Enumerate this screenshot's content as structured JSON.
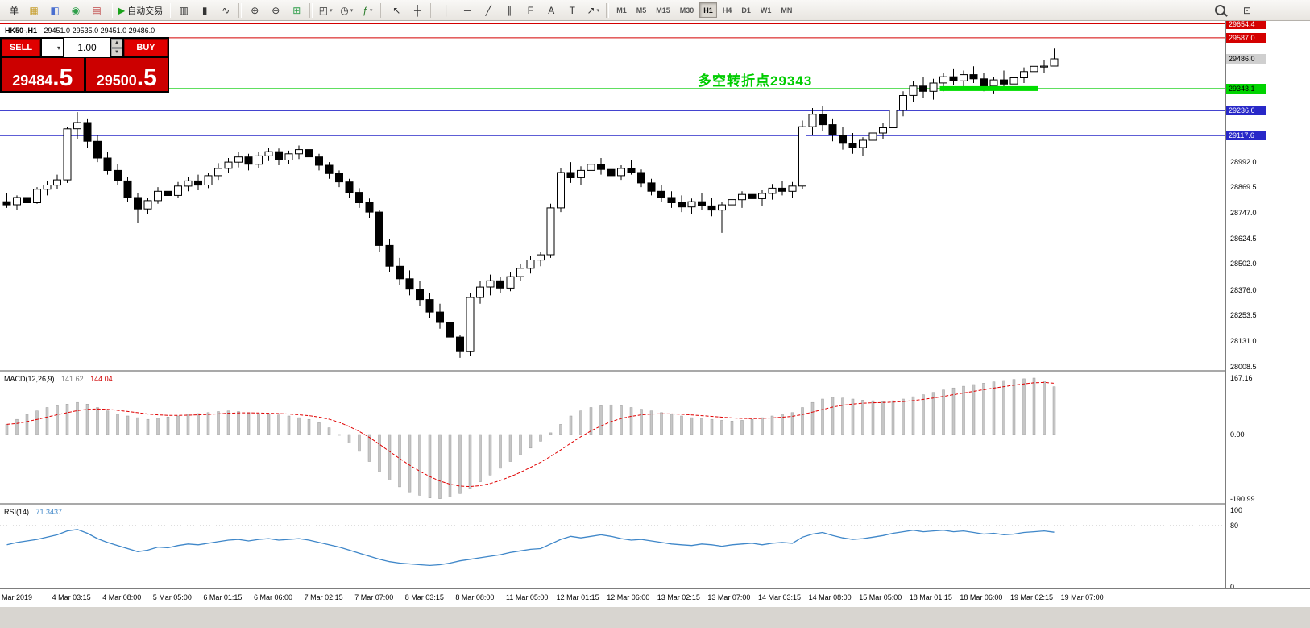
{
  "chart_header": {
    "symbol": "HK50-,H1",
    "ohlc": "29451.0 29535.0 29451.0 29486.0"
  },
  "icons": {
    "chevron_down": "▾",
    "spin_up": "▲",
    "spin_down": "▼"
  },
  "toolbar": {
    "items": [
      {
        "name": "new-order-button",
        "label": "单"
      },
      {
        "name": "market-watch-icon",
        "glyph": "▦",
        "color": "#c79f2f"
      },
      {
        "name": "data-window-icon",
        "glyph": "◧",
        "color": "#4a6fd0"
      },
      {
        "name": "navigator-icon",
        "glyph": "◉",
        "color": "#2e9e4a"
      },
      {
        "name": "terminal-icon",
        "glyph": "▤",
        "color": "#c04545"
      },
      {
        "type": "sep"
      },
      {
        "name": "auto-trading-button",
        "glyph": "▶",
        "color": "#1aa21a",
        "label": "自动交易"
      },
      {
        "type": "sep"
      },
      {
        "name": "bar-chart-icon",
        "glyph": "▥"
      },
      {
        "name": "candlestick-chart-icon",
        "glyph": "▮"
      },
      {
        "name": "line-chart-icon",
        "glyph": "∿"
      },
      {
        "type": "sep"
      },
      {
        "name": "zoom-in-icon",
        "glyph": "⊕"
      },
      {
        "name": "zoom-out-icon",
        "glyph": "⊖"
      },
      {
        "name": "tile-windows-icon",
        "glyph": "⊞",
        "color": "#2e9e4a"
      },
      {
        "type": "sep"
      },
      {
        "name": "new-chart-icon",
        "glyph": "◰",
        "dropdown": true
      },
      {
        "name": "period-icon",
        "glyph": "◷",
        "dropdown": true
      },
      {
        "name": "indicators-icon",
        "glyph": "ƒ",
        "color": "#2e7e2e",
        "dropdown": true
      },
      {
        "type": "sep"
      },
      {
        "name": "cursor-icon",
        "glyph": "↖"
      },
      {
        "name": "crosshair-icon",
        "glyph": "┼"
      },
      {
        "type": "sep"
      },
      {
        "name": "vertical-line-icon",
        "glyph": "│"
      },
      {
        "name": "horizontal-line-icon",
        "glyph": "─"
      },
      {
        "name": "trendline-icon",
        "glyph": "╱"
      },
      {
        "name": "channel-icon",
        "glyph": "∥"
      },
      {
        "name": "fibonacci-icon",
        "glyph": "F"
      },
      {
        "name": "text-icon",
        "glyph": "A"
      },
      {
        "name": "label-icon",
        "glyph": "T"
      },
      {
        "name": "shapes-icon",
        "glyph": "↗",
        "dropdown": true
      },
      {
        "type": "sep"
      }
    ],
    "timeframes": [
      "M1",
      "M5",
      "M15",
      "M30",
      "H1",
      "H4",
      "D1",
      "W1",
      "MN"
    ],
    "active_timeframe": "H1",
    "right_icons": [
      {
        "name": "search-icon",
        "glyph": "search"
      },
      {
        "name": "new-window-icon",
        "glyph": "⊡"
      }
    ]
  },
  "trade_panel": {
    "sell_label": "SELL",
    "buy_label": "BUY",
    "volume": "1.00",
    "sell_price_main": "29484",
    "sell_price_frac": ".5",
    "buy_price_main": "29500",
    "buy_price_frac": ".5"
  },
  "annotation": {
    "text": "多空转折点29343",
    "color": "#00cc00"
  },
  "time_axis": {
    "labels": [
      "Mar 2019",
      "4 Mar 03:15",
      "4 Mar 08:00",
      "5 Mar 05:00",
      "6 Mar 01:15",
      "6 Mar 06:00",
      "7 Mar 02:15",
      "7 Mar 07:00",
      "8 Mar 03:15",
      "8 Mar 08:00",
      "11 Mar 05:00",
      "12 Mar 01:15",
      "12 Mar 06:00",
      "13 Mar 02:15",
      "13 Mar 07:00",
      "14 Mar 03:15",
      "14 Mar 08:00",
      "15 Mar 05:00",
      "18 Mar 01:15",
      "18 Mar 06:00",
      "19 Mar 02:15",
      "19 Mar 07:00"
    ]
  },
  "chart_data": [
    {
      "type": "candlestick",
      "symbol": "HK50-,H1",
      "ylim": [
        28008.5,
        29668.0
      ],
      "grid_labels": [
        28992.0,
        28869.5,
        28747.0,
        28624.5,
        28502.0,
        28376.0,
        28253.5,
        28131.0,
        28008.5
      ],
      "current_price": {
        "price": 29486.0,
        "box": "#cfcfcf",
        "text": "#000000"
      },
      "price_lines": [
        {
          "price": 29654.4,
          "color": "#d40000",
          "text": "#ffffff"
        },
        {
          "price": 29587.0,
          "color": "#d40000",
          "text": "#ffffff"
        },
        {
          "price": 29343.1,
          "color": "#00cc00",
          "box": "#00d400",
          "text": "#000000"
        },
        {
          "price": 29236.6,
          "color": "#2828c8",
          "text": "#ffffff"
        },
        {
          "price": 29117.6,
          "color": "#2828c8",
          "text": "#ffffff"
        }
      ],
      "green_segment": {
        "from_index": 93,
        "to_index": 102,
        "price": 29343.1,
        "color": "#00dd00"
      },
      "ohlc": [
        [
          28800,
          28840,
          28770,
          28785
        ],
        [
          28785,
          28830,
          28760,
          28820
        ],
        [
          28820,
          28850,
          28780,
          28795
        ],
        [
          28795,
          28870,
          28790,
          28860
        ],
        [
          28860,
          28900,
          28830,
          28880
        ],
        [
          28880,
          28930,
          28860,
          28905
        ],
        [
          28905,
          29160,
          28890,
          29150
        ],
        [
          29150,
          29230,
          29100,
          29180
        ],
        [
          29180,
          29200,
          29060,
          29090
        ],
        [
          29090,
          29120,
          28990,
          29010
        ],
        [
          29010,
          29040,
          28930,
          28950
        ],
        [
          28950,
          28980,
          28880,
          28900
        ],
        [
          28900,
          28920,
          28800,
          28820
        ],
        [
          28820,
          28840,
          28700,
          28765
        ],
        [
          28765,
          28820,
          28740,
          28805
        ],
        [
          28805,
          28870,
          28790,
          28850
        ],
        [
          28850,
          28880,
          28810,
          28830
        ],
        [
          28830,
          28895,
          28820,
          28875
        ],
        [
          28875,
          28920,
          28850,
          28900
        ],
        [
          28900,
          28930,
          28855,
          28880
        ],
        [
          28880,
          28940,
          28865,
          28925
        ],
        [
          28925,
          28985,
          28905,
          28960
        ],
        [
          28960,
          29010,
          28940,
          28990
        ],
        [
          28990,
          29040,
          28965,
          29015
        ],
        [
          29015,
          29030,
          28950,
          28980
        ],
        [
          28980,
          29040,
          28960,
          29020
        ],
        [
          29020,
          29060,
          28995,
          29040
        ],
        [
          29040,
          29055,
          28975,
          29000
        ],
        [
          29000,
          29045,
          28980,
          29030
        ],
        [
          29030,
          29070,
          29005,
          29050
        ],
        [
          29050,
          29060,
          28990,
          29015
        ],
        [
          29015,
          29030,
          28950,
          28975
        ],
        [
          28975,
          28990,
          28910,
          28935
        ],
        [
          28935,
          28950,
          28870,
          28895
        ],
        [
          28895,
          28910,
          28820,
          28845
        ],
        [
          28845,
          28865,
          28770,
          28795
        ],
        [
          28795,
          28815,
          28720,
          28750
        ],
        [
          28750,
          28760,
          28560,
          28590
        ],
        [
          28590,
          28620,
          28460,
          28490
        ],
        [
          28490,
          28530,
          28400,
          28430
        ],
        [
          28430,
          28470,
          28350,
          28380
        ],
        [
          28380,
          28420,
          28300,
          28330
        ],
        [
          28330,
          28360,
          28240,
          28270
        ],
        [
          28270,
          28310,
          28190,
          28220
        ],
        [
          28220,
          28250,
          28120,
          28150
        ],
        [
          28150,
          28160,
          28050,
          28080
        ],
        [
          28080,
          28360,
          28060,
          28340
        ],
        [
          28340,
          28420,
          28310,
          28390
        ],
        [
          28390,
          28450,
          28350,
          28420
        ],
        [
          28420,
          28440,
          28360,
          28385
        ],
        [
          28385,
          28460,
          28370,
          28440
        ],
        [
          28440,
          28500,
          28420,
          28480
        ],
        [
          28480,
          28540,
          28455,
          28520
        ],
        [
          28520,
          28560,
          28490,
          28545
        ],
        [
          28545,
          28790,
          28530,
          28770
        ],
        [
          28770,
          28960,
          28750,
          28940
        ],
        [
          28940,
          28990,
          28890,
          28915
        ],
        [
          28915,
          28970,
          28880,
          28950
        ],
        [
          28950,
          29000,
          28920,
          28980
        ],
        [
          28980,
          29010,
          28930,
          28955
        ],
        [
          28955,
          28985,
          28900,
          28925
        ],
        [
          28925,
          28975,
          28905,
          28960
        ],
        [
          28960,
          29000,
          28930,
          28940
        ],
        [
          28940,
          28955,
          28870,
          28890
        ],
        [
          28890,
          28910,
          28830,
          28850
        ],
        [
          28850,
          28880,
          28800,
          28820
        ],
        [
          28820,
          28850,
          28770,
          28795
        ],
        [
          28795,
          28830,
          28750,
          28775
        ],
        [
          28775,
          28815,
          28740,
          28800
        ],
        [
          28800,
          28840,
          28760,
          28780
        ],
        [
          28780,
          28820,
          28730,
          28760
        ],
        [
          28760,
          28800,
          28650,
          28785
        ],
        [
          28785,
          28830,
          28745,
          28810
        ],
        [
          28810,
          28850,
          28770,
          28835
        ],
        [
          28835,
          28870,
          28790,
          28815
        ],
        [
          28815,
          28855,
          28780,
          28840
        ],
        [
          28840,
          28885,
          28810,
          28865
        ],
        [
          28865,
          28900,
          28830,
          28850
        ],
        [
          28850,
          28895,
          28820,
          28875
        ],
        [
          28875,
          29190,
          28860,
          29160
        ],
        [
          29160,
          29250,
          29120,
          29220
        ],
        [
          29220,
          29260,
          29140,
          29170
        ],
        [
          29170,
          29200,
          29090,
          29120
        ],
        [
          29120,
          29160,
          29050,
          29080
        ],
        [
          29080,
          29130,
          29030,
          29060
        ],
        [
          29060,
          29110,
          29020,
          29095
        ],
        [
          29095,
          29150,
          29060,
          29130
        ],
        [
          29130,
          29180,
          29100,
          29155
        ],
        [
          29155,
          29260,
          29130,
          29240
        ],
        [
          29240,
          29330,
          29210,
          29310
        ],
        [
          29310,
          29380,
          29280,
          29355
        ],
        [
          29355,
          29400,
          29300,
          29330
        ],
        [
          29330,
          29390,
          29290,
          29370
        ],
        [
          29370,
          29420,
          29330,
          29400
        ],
        [
          29400,
          29440,
          29360,
          29380
        ],
        [
          29380,
          29430,
          29340,
          29410
        ],
        [
          29410,
          29450,
          29370,
          29390
        ],
        [
          29390,
          29420,
          29330,
          29355
        ],
        [
          29355,
          29400,
          29320,
          29385
        ],
        [
          29385,
          29430,
          29350,
          29365
        ],
        [
          29365,
          29410,
          29330,
          29395
        ],
        [
          29395,
          29445,
          29370,
          29425
        ],
        [
          29425,
          29470,
          29400,
          29450
        ],
        [
          29450,
          29480,
          29420,
          29451
        ],
        [
          29451,
          29535,
          29451,
          29486
        ]
      ]
    },
    {
      "type": "bar",
      "name": "MACD(12,26,9)",
      "value": "141.62",
      "signal_value": "144.04",
      "ylim": [
        -190.99,
        167.16
      ],
      "axis_labels": [
        167.16,
        0.0,
        -190.99
      ],
      "values": [
        30,
        45,
        60,
        70,
        80,
        85,
        90,
        95,
        90,
        80,
        70,
        60,
        55,
        50,
        45,
        48,
        52,
        55,
        60,
        62,
        65,
        68,
        70,
        68,
        65,
        62,
        60,
        58,
        55,
        50,
        45,
        35,
        20,
        0,
        -25,
        -50,
        -80,
        -110,
        -135,
        -155,
        -170,
        -180,
        -188,
        -190,
        -185,
        -175,
        -160,
        -140,
        -120,
        -100,
        -80,
        -60,
        -40,
        -20,
        5,
        30,
        55,
        70,
        80,
        85,
        88,
        85,
        80,
        75,
        70,
        65,
        60,
        55,
        50,
        48,
        45,
        42,
        40,
        42,
        45,
        50,
        55,
        60,
        65,
        80,
        95,
        105,
        110,
        108,
        105,
        102,
        100,
        98,
        100,
        105,
        112,
        118,
        125,
        132,
        138,
        143,
        148,
        152,
        156,
        160,
        163,
        165,
        167.16,
        158,
        141.62
      ]
    },
    {
      "type": "line",
      "name": "RSI(14)",
      "value": "71.3437",
      "ylim": [
        0,
        100
      ],
      "level": 80,
      "axis_labels": [
        100,
        80,
        0
      ],
      "values": [
        55,
        58,
        60,
        62,
        65,
        68,
        73,
        75,
        70,
        63,
        58,
        54,
        50,
        46,
        48,
        52,
        51,
        54,
        56,
        55,
        57,
        59,
        61,
        62,
        60,
        62,
        63,
        61,
        62,
        63,
        61,
        58,
        55,
        52,
        48,
        44,
        40,
        36,
        33,
        31,
        30,
        29,
        28,
        29,
        31,
        34,
        36,
        38,
        40,
        42,
        45,
        47,
        49,
        50,
        56,
        62,
        66,
        64,
        66,
        68,
        66,
        63,
        61,
        62,
        60,
        58,
        56,
        55,
        54,
        56,
        55,
        53,
        55,
        56,
        57,
        55,
        57,
        58,
        57,
        65,
        69,
        71,
        67,
        64,
        62,
        63,
        65,
        67,
        70,
        72,
        74,
        72,
        73,
        74,
        72,
        73,
        71,
        69,
        70,
        68,
        69,
        71,
        72,
        73,
        71.34
      ]
    }
  ]
}
